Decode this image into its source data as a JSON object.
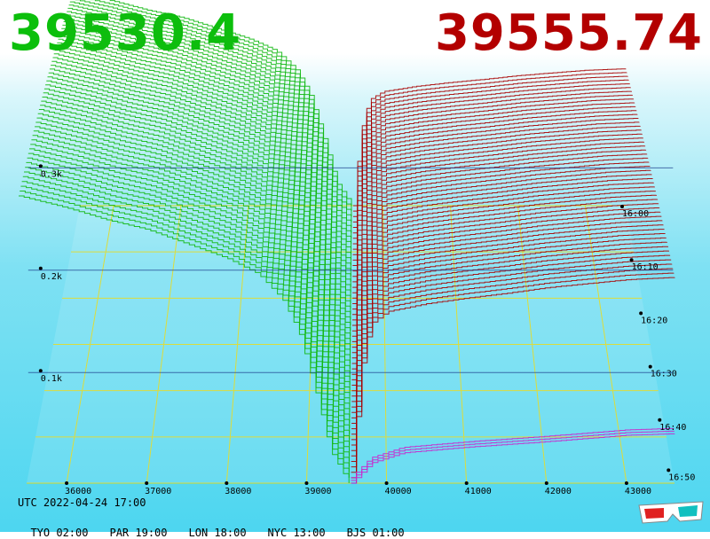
{
  "header": {
    "bid": "39530.4",
    "ask": "39555.74",
    "bid_color": "#0cbf0c",
    "ask_color": "#b30000"
  },
  "footer": {
    "utc": "UTC 2022-04-24 17:00",
    "zones": [
      "TYO 02:00",
      "PAR 19:00",
      "LON 18:00",
      "NYC 13:00",
      "BJS 01:00"
    ]
  },
  "icons": {
    "glasses": "3d-glasses-icon"
  },
  "chart_data": {
    "type": "line",
    "description_3d": "order book depth snapshots stacked over time",
    "x_ticks": [
      "36000",
      "37000",
      "38000",
      "39000",
      "40000",
      "41000",
      "42000",
      "43000"
    ],
    "x_range": [
      35500,
      43600
    ],
    "z_labels": [
      "0.1k",
      "0.2k",
      "0.3k"
    ],
    "time_labels": [
      "16:00",
      "16:10",
      "16:20",
      "16:30",
      "16:40",
      "16:50"
    ],
    "series": [
      {
        "side": "bid",
        "color": "#12b812",
        "points": [
          [
            35400,
            360
          ],
          [
            36000,
            345
          ],
          [
            36500,
            330
          ],
          [
            37000,
            318
          ],
          [
            37500,
            300
          ],
          [
            38000,
            282
          ],
          [
            38400,
            262
          ],
          [
            38700,
            230
          ],
          [
            38900,
            190
          ],
          [
            39100,
            120
          ],
          [
            39300,
            40
          ],
          [
            39530,
            0
          ]
        ]
      },
      {
        "side": "ask",
        "color": "#a80000",
        "points": [
          [
            39556,
            0
          ],
          [
            39600,
            60
          ],
          [
            39700,
            160
          ],
          [
            39800,
            200
          ],
          [
            40000,
            215
          ],
          [
            40500,
            225
          ],
          [
            41000,
            232
          ],
          [
            41500,
            238
          ],
          [
            42000,
            245
          ],
          [
            42500,
            250
          ],
          [
            43000,
            255
          ],
          [
            43600,
            258
          ]
        ]
      },
      {
        "side": "ask-latest",
        "color": "#cc22cc",
        "points": [
          [
            39556,
            0
          ],
          [
            39800,
            25
          ],
          [
            40200,
            38
          ],
          [
            41000,
            45
          ],
          [
            42000,
            52
          ],
          [
            43000,
            60
          ],
          [
            43600,
            62
          ]
        ]
      }
    ],
    "snapshot_count": 52
  }
}
